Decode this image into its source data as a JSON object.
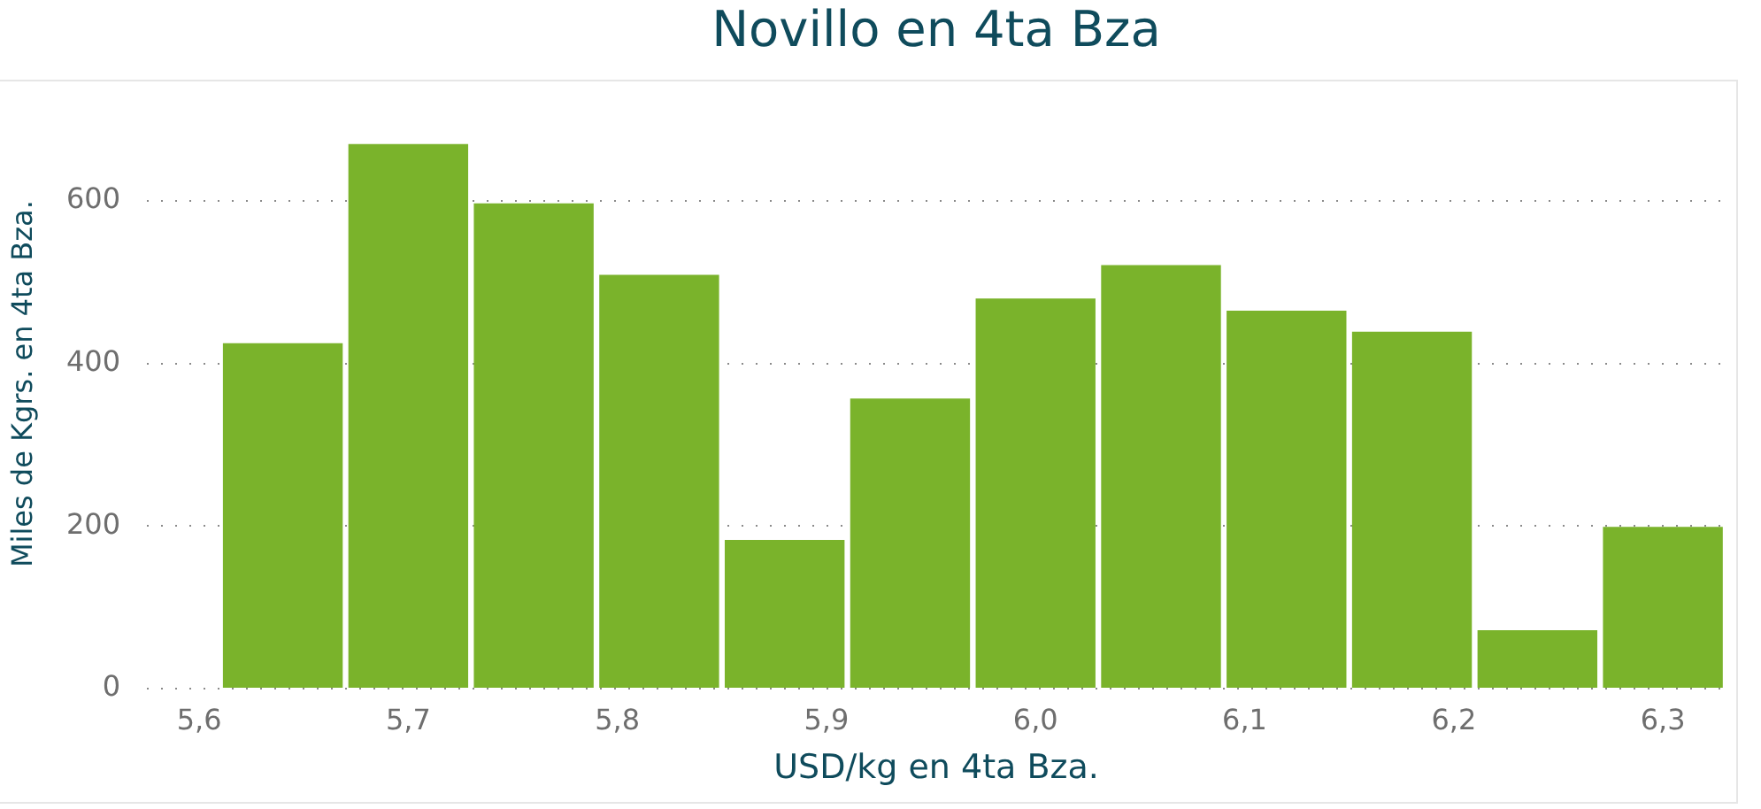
{
  "chart_data": {
    "type": "histogram",
    "title": "Novillo en 4ta Bza",
    "xlabel": "USD/kg en 4ta Bza.",
    "ylabel": "Miles de Kgrs. en 4ta Bza.",
    "bins": [
      5.61,
      5.67,
      5.73,
      5.79,
      5.85,
      5.91,
      5.97,
      6.03,
      6.09,
      6.15,
      6.21,
      6.27,
      6.33
    ],
    "values": [
      425,
      670,
      597,
      509,
      183,
      357,
      480,
      521,
      465,
      439,
      72,
      199
    ],
    "color": "#7ab32b",
    "xlim": [
      5.575,
      6.33
    ],
    "xticks": [
      {
        "value": 5.6,
        "label": "5,6"
      },
      {
        "value": 5.7,
        "label": "5,7"
      },
      {
        "value": 5.8,
        "label": "5,8"
      },
      {
        "value": 5.9,
        "label": "5,9"
      },
      {
        "value": 6.0,
        "label": "6,0"
      },
      {
        "value": 6.1,
        "label": "6,1"
      },
      {
        "value": 6.2,
        "label": "6,2"
      },
      {
        "value": 6.3,
        "label": "6,3"
      }
    ],
    "ylim": [
      0,
      750
    ],
    "yticks": [
      0,
      200,
      400,
      600
    ],
    "grid": "y"
  }
}
